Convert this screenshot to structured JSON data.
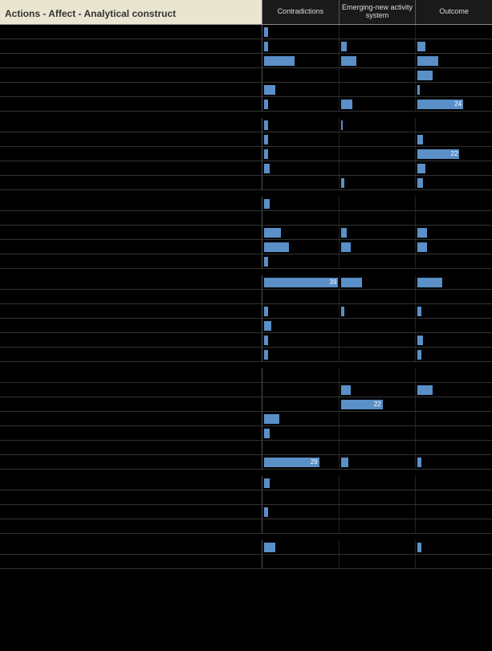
{
  "chart": {
    "type": "bar",
    "bar_color": "#5a8fc7",
    "background_color": "#000000",
    "header_bg": "#e9e5d0",
    "header_text_color": "#333333",
    "col_header_bg": "#1a1a1a",
    "col_header_text_color": "#dddddd",
    "grid_color": "#333333",
    "label_font_size": 12,
    "col_header_font_size": 9,
    "value_font_size": 8,
    "max_value": 40,
    "show_label_threshold": 20,
    "label_header": "Actions - Affect - Analytical construct",
    "columns": [
      "Contradictions",
      "Emerging-new activity system",
      "Outcome"
    ],
    "rows": [
      {
        "label": "",
        "values": [
          2,
          0,
          0
        ]
      },
      {
        "label": "",
        "values": [
          2,
          3,
          4
        ]
      },
      {
        "label": "",
        "values": [
          16,
          8,
          11
        ]
      },
      {
        "label": "",
        "values": [
          0,
          0,
          8
        ]
      },
      {
        "label": "",
        "values": [
          6,
          0,
          1
        ]
      },
      {
        "label": "",
        "values": [
          2,
          6,
          24
        ]
      },
      {
        "label": "",
        "values": [
          null,
          null,
          null
        ]
      },
      {
        "label": "",
        "values": [
          2,
          1,
          0
        ]
      },
      {
        "label": "",
        "values": [
          2,
          0,
          3
        ]
      },
      {
        "label": "",
        "values": [
          2,
          0,
          22
        ]
      },
      {
        "label": "",
        "values": [
          3,
          0,
          4
        ]
      },
      {
        "label": "",
        "values": [
          0,
          2,
          3
        ]
      },
      {
        "label": "",
        "values": [
          null,
          null,
          null
        ]
      },
      {
        "label": "",
        "values": [
          3,
          0,
          0
        ]
      },
      {
        "label": "",
        "values": [
          0,
          0,
          0
        ]
      },
      {
        "label": "",
        "values": [
          9,
          3,
          5
        ]
      },
      {
        "label": "",
        "values": [
          13,
          5,
          5
        ]
      },
      {
        "label": "",
        "values": [
          2,
          0,
          0
        ]
      },
      {
        "label": "",
        "values": [
          null,
          null,
          null
        ]
      },
      {
        "label": "",
        "values": [
          39,
          11,
          13
        ]
      },
      {
        "label": "",
        "values": [
          0,
          0,
          0
        ]
      },
      {
        "label": "",
        "values": [
          2,
          2,
          2
        ]
      },
      {
        "label": "",
        "values": [
          4,
          0,
          0
        ]
      },
      {
        "label": "",
        "values": [
          2,
          0,
          3
        ]
      },
      {
        "label": "",
        "values": [
          2,
          0,
          2
        ]
      },
      {
        "label": "",
        "values": [
          null,
          null,
          null
        ]
      },
      {
        "label": "",
        "values": [
          0,
          0,
          0
        ]
      },
      {
        "label": "",
        "values": [
          0,
          5,
          8
        ]
      },
      {
        "label": "",
        "values": [
          0,
          22,
          0
        ]
      },
      {
        "label": "",
        "values": [
          8,
          0,
          0
        ]
      },
      {
        "label": "",
        "values": [
          3,
          0,
          0
        ]
      },
      {
        "label": "",
        "values": [
          0,
          0,
          0
        ]
      },
      {
        "label": "",
        "values": [
          29,
          4,
          2
        ]
      },
      {
        "label": "",
        "values": [
          null,
          null,
          null
        ]
      },
      {
        "label": "",
        "values": [
          3,
          0,
          0
        ]
      },
      {
        "label": "",
        "values": [
          0,
          0,
          0
        ]
      },
      {
        "label": "",
        "values": [
          2,
          0,
          0
        ]
      },
      {
        "label": "",
        "values": [
          0,
          0,
          0
        ]
      },
      {
        "label": "",
        "values": [
          null,
          null,
          null
        ]
      },
      {
        "label": "",
        "values": [
          6,
          0,
          2
        ]
      },
      {
        "label": "",
        "values": [
          0,
          0,
          0
        ]
      }
    ]
  }
}
